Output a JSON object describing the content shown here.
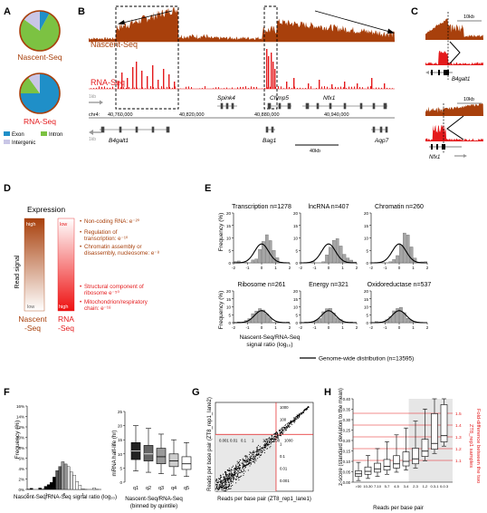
{
  "colors": {
    "nascent": "#a8400c",
    "rna": "#e41a1c",
    "exon": "#1f8fc8",
    "intron": "#7cc242",
    "intergenic": "#c9c6e6",
    "hist_gray": "#a6a6a6",
    "boxfill": "#cfcfcf"
  },
  "panel_labels": {
    "a": "A",
    "b": "B",
    "c": "C",
    "d": "D",
    "e": "E",
    "f": "F",
    "g": "G",
    "h": "H"
  },
  "panel_a": {
    "nascent_label": "Nascent-Seq",
    "rna_label": "RNA-Seq",
    "legend": {
      "exon": "Exon",
      "intron": "Intron",
      "intergenic": "Intergenic"
    }
  },
  "panel_b": {
    "nascent_label": "Nascent-Seq",
    "rna_label": "RNA-Seq",
    "scale_1kb": "1kb",
    "scale_40kb": "40kb",
    "chrom": "chr4:",
    "coords": [
      "40,760,000",
      "40,820,000",
      "40,880,000",
      "40,940,000"
    ],
    "genes_top": [
      "Spink4",
      "Chmp5",
      "Nfx1"
    ],
    "genes_bottom": [
      "B4galt1",
      "Bag1",
      "Aqp7"
    ]
  },
  "panel_c": {
    "scale": "10kb",
    "gene1": "B4galt1",
    "gene2": "Nfx1"
  },
  "panel_d": {
    "title": "Expression",
    "ylabel": "Read signal",
    "high": "high",
    "low": "low",
    "col1": [
      "Nascent",
      "-Seq"
    ],
    "col2": [
      "RNA",
      "-Seq"
    ],
    "brown_items": [
      [
        "Non-coding RNA: e⁻²⁰"
      ],
      [
        "Regulation of",
        "transcription: e⁻¹⁰"
      ],
      [
        "Chromatin assembly or",
        "disassembly, nucleosome: e⁻⁸"
      ]
    ],
    "red_items": [
      [
        "Structural component of",
        "ribosome e⁻⁵⁰"
      ],
      [
        "Mitochondrion/respiratory",
        "chain: e⁻¹⁸"
      ]
    ]
  },
  "panel_e": {
    "ylabel": "Frequency (%)",
    "xlabel": [
      "Nascent-Seq/RNA-Seq",
      "signal ratio (log₁₀)"
    ],
    "titles": [
      "Transcription n=1278",
      "lncRNA n=407",
      "Chromatin n=260",
      "Ribosome n=261",
      "Energy n=321",
      "Oxidoreductase n=537"
    ],
    "legend": "Genome-wide distribution (n=13595)"
  },
  "panel_f": {
    "ylabel": "Frequency (%)",
    "xlabel": "Nascent-Seq/RNA-Seq signal ratio (log₁₀)",
    "box_ylabel": "mRNA half-life (hr)",
    "box_cats": [
      "q1",
      "q2",
      "q3",
      "q4",
      "q5"
    ],
    "box_xlabel": [
      "Nascent-Seq/RNA-Seq",
      "(binned by quintile)"
    ]
  },
  "panel_g": {
    "ylabel": "Reads per base pair (ZT8_rep1_lane2)",
    "xlabel": "Reads per base pair (ZT8_rep1_lane1)"
  },
  "panel_h": {
    "ylabel": [
      "z-score (standard deviation to the mean)"
    ],
    "right_label": [
      "Fold-difference between the two",
      "ZT8_rep1 samples"
    ],
    "xlabel": "Reads per base pair",
    "fold_values": [
      "1.5",
      "1.4",
      "1.3",
      "1.2",
      "1.1"
    ]
  },
  "chart_data": [
    {
      "type": "pie",
      "title": "",
      "series": [
        {
          "name": "Nascent-Seq",
          "labels": [
            "Exon",
            "Intron",
            "Intergenic"
          ],
          "values": [
            8,
            77,
            15
          ]
        },
        {
          "name": "RNA-Seq",
          "labels": [
            "Exon",
            "Intron",
            "Intergenic"
          ],
          "values": [
            75,
            15,
            10
          ]
        }
      ]
    },
    {
      "type": "bar",
      "title": "Transcription n=1278",
      "xlabel": "Nascent-Seq/RNA-Seq signal ratio (log10)",
      "ylabel": "Frequency (%)",
      "xlim": [
        -2,
        2
      ],
      "ylim": [
        0,
        20
      ],
      "bins": [
        -1.75,
        -1.5,
        -1.25,
        -1.0,
        -0.75,
        -0.5,
        -0.25,
        0.0,
        0.25,
        0.5,
        0.75,
        1.0,
        1.25,
        1.5
      ],
      "values": [
        0.5,
        1,
        1.5,
        2.5,
        4,
        7,
        10,
        14,
        17,
        12,
        9,
        6,
        3,
        1.5
      ]
    }
  ]
}
